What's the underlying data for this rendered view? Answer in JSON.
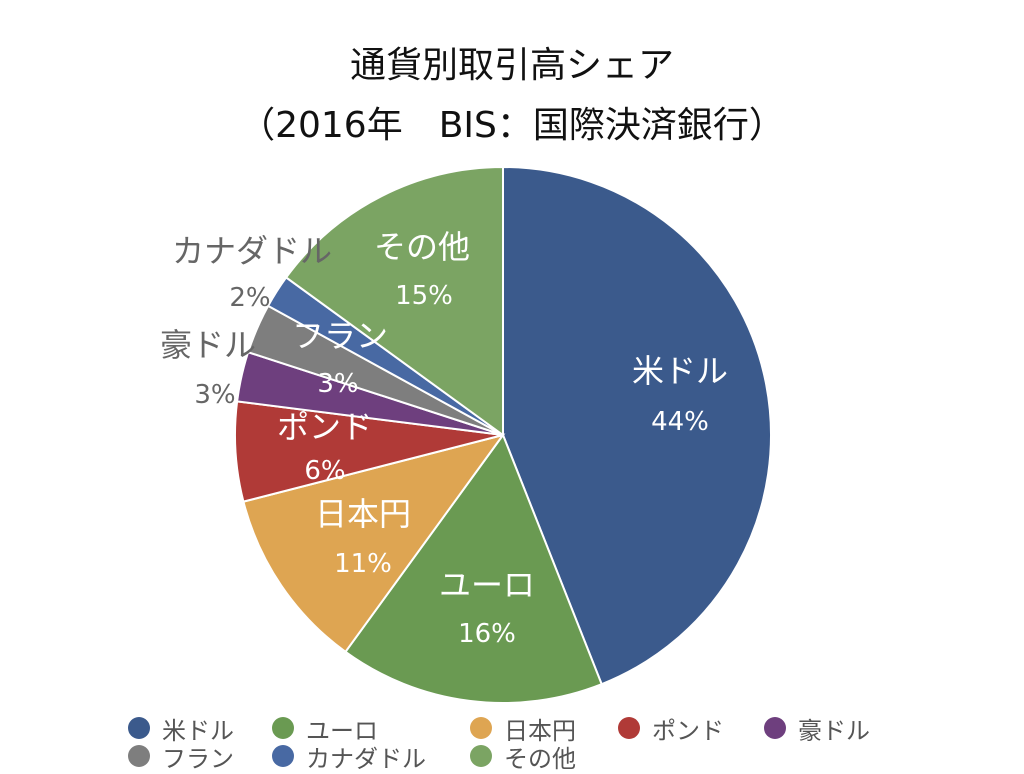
{
  "chart_data": {
    "type": "pie",
    "title": "通貨別取引高シェア",
    "subtitle": "（2016年　BIS：国際決済銀行）",
    "slices": [
      {
        "label": "米ドル",
        "value": 44,
        "pct": "44%",
        "color": "#3b5a8c"
      },
      {
        "label": "ユーロ",
        "value": 16,
        "pct": "16%",
        "color": "#6a9a52"
      },
      {
        "label": "日本円",
        "value": 11,
        "pct": "11%",
        "color": "#dea552"
      },
      {
        "label": "ポンド",
        "value": 6,
        "pct": "6%",
        "color": "#b03a37"
      },
      {
        "label": "豪ドル",
        "value": 3,
        "pct": "3%",
        "color": "#6e3f7e"
      },
      {
        "label": "フラン",
        "value": 3,
        "pct": "3%",
        "color": "#7e7e7e"
      },
      {
        "label": "カナダドル",
        "value": 2,
        "pct": "2%",
        "color": "#4869a3"
      },
      {
        "label": "その他",
        "value": 15,
        "pct": "15%",
        "color": "#7ba463"
      }
    ],
    "legend_position": "bottom"
  }
}
